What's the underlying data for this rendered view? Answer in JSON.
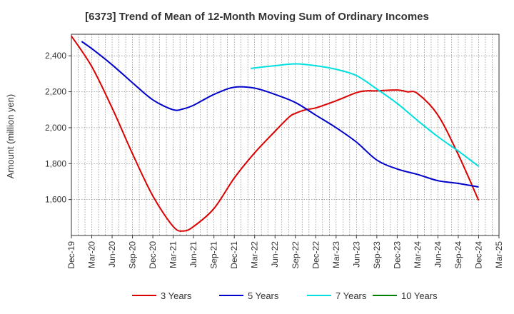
{
  "chart_data": {
    "type": "line",
    "title": "[6373]  Trend of Mean of 12-Month Moving Sum of Ordinary Incomes",
    "xlabel": "",
    "ylabel": "Amount (million yen)",
    "ylim": [
      1400,
      2520
    ],
    "yticks": [
      1600,
      1800,
      2000,
      2200,
      2400
    ],
    "ytick_labels": [
      "1,600",
      "1,800",
      "2,000",
      "2,200",
      "2,400"
    ],
    "x_categories": [
      "Dec-19",
      "Mar-20",
      "Jun-20",
      "Sep-20",
      "Dec-20",
      "Mar-21",
      "Jun-21",
      "Sep-21",
      "Dec-21",
      "Mar-22",
      "Jun-22",
      "Sep-22",
      "Dec-22",
      "Mar-23",
      "Jun-23",
      "Sep-23",
      "Dec-23",
      "Mar-24",
      "Jun-24",
      "Sep-24",
      "Dec-24",
      "Mar-25"
    ],
    "grid": true,
    "legend_position": "bottom",
    "series": [
      {
        "name": "3 Years",
        "color": "#dd0000",
        "x": [
          0,
          1,
          2,
          3,
          4,
          5,
          5.5,
          6,
          7,
          8,
          9,
          10,
          10.7,
          11,
          11.5,
          12,
          13,
          14,
          14.5,
          15,
          16,
          16.5,
          17,
          18,
          19,
          20
        ],
        "values": [
          2510,
          2340,
          2110,
          1855,
          1620,
          1450,
          1425,
          1450,
          1550,
          1720,
          1860,
          1980,
          2060,
          2080,
          2100,
          2110,
          2150,
          2195,
          2205,
          2205,
          2210,
          2200,
          2190,
          2070,
          1850,
          1595
        ]
      },
      {
        "name": "5 Years",
        "color": "#0000cc",
        "x": [
          0.5,
          1,
          2,
          3,
          4,
          5,
          5.5,
          6,
          7,
          8,
          9,
          10,
          11,
          12,
          13,
          14,
          15,
          16,
          17,
          18,
          19,
          20
        ],
        "values": [
          2480,
          2440,
          2350,
          2250,
          2155,
          2100,
          2105,
          2125,
          2185,
          2225,
          2220,
          2185,
          2140,
          2070,
          2000,
          1920,
          1820,
          1770,
          1740,
          1705,
          1690,
          1670
        ]
      },
      {
        "name": "7 Years",
        "color": "#00e0e0",
        "x": [
          8.8,
          10,
          11,
          12,
          13,
          14,
          15,
          16,
          17,
          18,
          19,
          20
        ],
        "values": [
          2330,
          2345,
          2355,
          2345,
          2325,
          2290,
          2215,
          2135,
          2040,
          1950,
          1870,
          1785
        ]
      },
      {
        "name": "10 Years",
        "color": "#008000",
        "x": [],
        "values": []
      }
    ]
  }
}
